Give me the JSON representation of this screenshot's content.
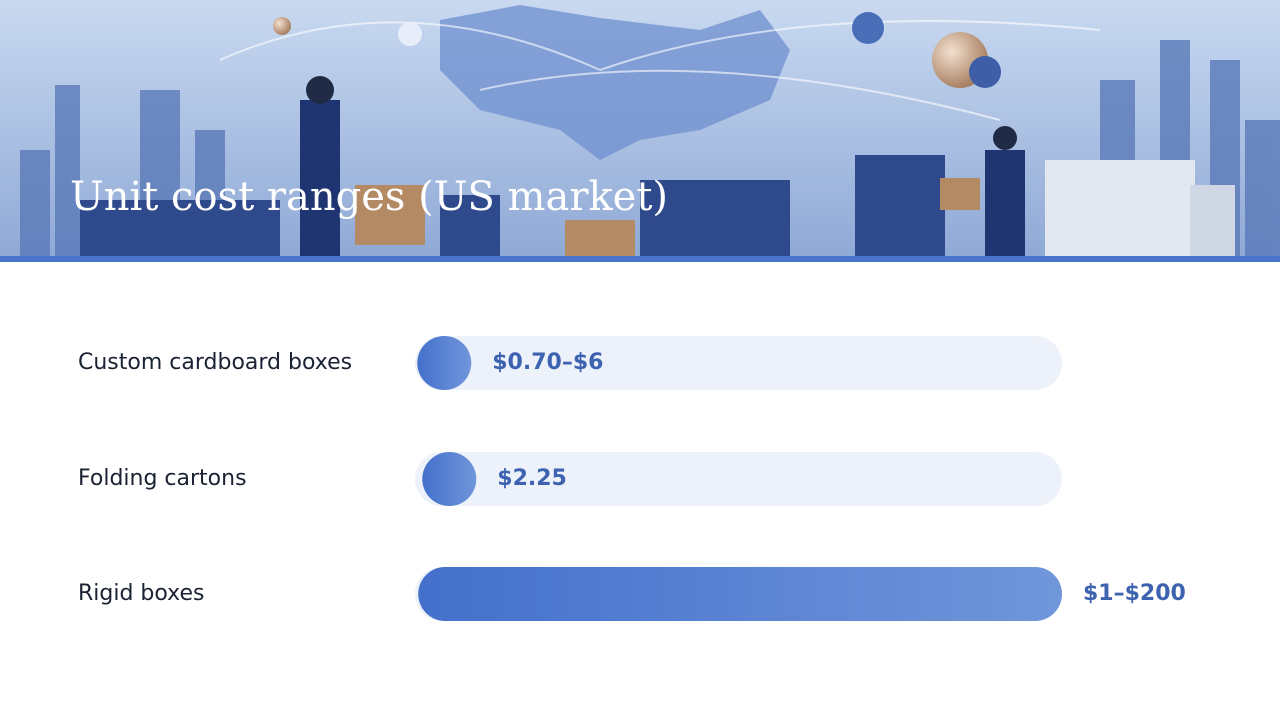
{
  "chart_data": {
    "type": "range-bar",
    "title": "Unit cost ranges (US market)",
    "categories": [
      "Custom cardboard boxes",
      "Folding cartons",
      "Rigid boxes"
    ],
    "low": [
      0.7,
      2.25,
      1
    ],
    "high": [
      6,
      2.25,
      200
    ],
    "value_labels": [
      "$0.70–$6",
      "$2.25",
      "$1–$200"
    ],
    "xlim": [
      0,
      200
    ],
    "color": "#4a78d0"
  }
}
